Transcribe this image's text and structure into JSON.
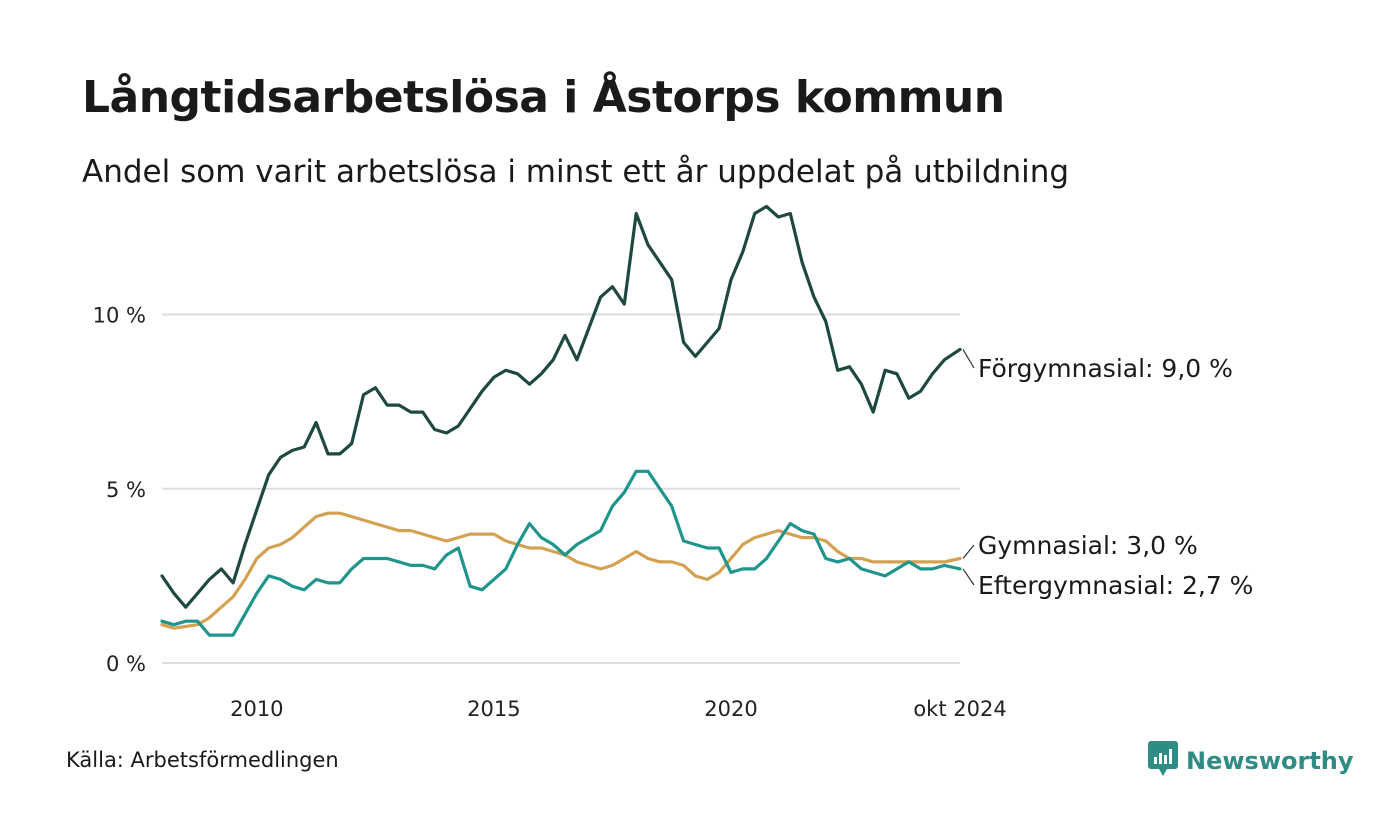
{
  "title": "Långtidsarbetslösa i Åstorps kommun",
  "subtitle": "Andel som varit arbetslösa i minst ett år uppdelat på utbildning",
  "source": "Källa: Arbetsförmedlingen",
  "brand": {
    "name": "Newsworthy",
    "icon": "newsworthy-logo-icon",
    "color": "#2f8c85"
  },
  "chart_data": {
    "type": "line",
    "title": "Långtidsarbetslösa i Åstorps kommun",
    "subtitle": "Andel som varit arbetslösa i minst ett år uppdelat på utbildning",
    "xlabel": "",
    "ylabel": "",
    "xlim": [
      2008.0,
      2024.83
    ],
    "ylim": [
      0,
      13
    ],
    "y_ticks": [
      0,
      5,
      10
    ],
    "y_tick_labels": [
      "0 %",
      "5 %",
      "10 %"
    ],
    "x_ticks": [
      2010,
      2015,
      2020,
      2024.83
    ],
    "x_tick_labels": [
      "2010",
      "2015",
      "2020",
      "okt 2024"
    ],
    "grid": "horizontal",
    "legend": "end-of-line labels (right)",
    "series": [
      {
        "name": "Förgymnasial",
        "end_label": "Förgymnasial: 9,0 %",
        "color": "#1e4840",
        "points": [
          [
            2008.0,
            2.5
          ],
          [
            2008.25,
            2.0
          ],
          [
            2008.5,
            1.6
          ],
          [
            2008.75,
            2.0
          ],
          [
            2009.0,
            2.4
          ],
          [
            2009.25,
            2.7
          ],
          [
            2009.5,
            2.3
          ],
          [
            2009.75,
            3.4
          ],
          [
            2010.0,
            4.4
          ],
          [
            2010.25,
            5.4
          ],
          [
            2010.5,
            5.9
          ],
          [
            2010.75,
            6.1
          ],
          [
            2011.0,
            6.2
          ],
          [
            2011.25,
            6.9
          ],
          [
            2011.5,
            6.0
          ],
          [
            2011.75,
            6.0
          ],
          [
            2012.0,
            6.3
          ],
          [
            2012.25,
            7.7
          ],
          [
            2012.5,
            7.9
          ],
          [
            2012.75,
            7.4
          ],
          [
            2013.0,
            7.4
          ],
          [
            2013.25,
            7.2
          ],
          [
            2013.5,
            7.2
          ],
          [
            2013.75,
            6.7
          ],
          [
            2014.0,
            6.6
          ],
          [
            2014.25,
            6.8
          ],
          [
            2014.5,
            7.3
          ],
          [
            2014.75,
            7.8
          ],
          [
            2015.0,
            8.2
          ],
          [
            2015.25,
            8.4
          ],
          [
            2015.5,
            8.3
          ],
          [
            2015.75,
            8.0
          ],
          [
            2016.0,
            8.3
          ],
          [
            2016.25,
            8.7
          ],
          [
            2016.5,
            9.4
          ],
          [
            2016.75,
            8.7
          ],
          [
            2017.0,
            9.6
          ],
          [
            2017.25,
            10.5
          ],
          [
            2017.5,
            10.8
          ],
          [
            2017.75,
            10.3
          ],
          [
            2018.0,
            12.9
          ],
          [
            2018.25,
            12.0
          ],
          [
            2018.5,
            11.5
          ],
          [
            2018.75,
            11.0
          ],
          [
            2019.0,
            9.2
          ],
          [
            2019.25,
            8.8
          ],
          [
            2019.5,
            9.2
          ],
          [
            2019.75,
            9.6
          ],
          [
            2020.0,
            11.0
          ],
          [
            2020.25,
            11.8
          ],
          [
            2020.5,
            12.9
          ],
          [
            2020.75,
            13.1
          ],
          [
            2021.0,
            12.8
          ],
          [
            2021.25,
            12.9
          ],
          [
            2021.5,
            11.5
          ],
          [
            2021.75,
            10.5
          ],
          [
            2022.0,
            9.8
          ],
          [
            2022.25,
            8.4
          ],
          [
            2022.5,
            8.5
          ],
          [
            2022.75,
            8.0
          ],
          [
            2023.0,
            7.2
          ],
          [
            2023.25,
            8.4
          ],
          [
            2023.5,
            8.3
          ],
          [
            2023.75,
            7.6
          ],
          [
            2024.0,
            7.8
          ],
          [
            2024.25,
            8.3
          ],
          [
            2024.5,
            8.7
          ],
          [
            2024.83,
            9.0
          ]
        ]
      },
      {
        "name": "Gymnasial",
        "end_label": "Gymnasial: 3,0 %",
        "color": "#d3a152",
        "points": [
          [
            2008.0,
            1.1
          ],
          [
            2008.25,
            1.0
          ],
          [
            2008.5,
            1.05
          ],
          [
            2008.75,
            1.1
          ],
          [
            2009.0,
            1.3
          ],
          [
            2009.25,
            1.6
          ],
          [
            2009.5,
            1.9
          ],
          [
            2009.75,
            2.4
          ],
          [
            2010.0,
            3.0
          ],
          [
            2010.25,
            3.3
          ],
          [
            2010.5,
            3.4
          ],
          [
            2010.75,
            3.6
          ],
          [
            2011.0,
            3.9
          ],
          [
            2011.25,
            4.2
          ],
          [
            2011.5,
            4.3
          ],
          [
            2011.75,
            4.3
          ],
          [
            2012.0,
            4.2
          ],
          [
            2012.25,
            4.1
          ],
          [
            2012.5,
            4.0
          ],
          [
            2012.75,
            3.9
          ],
          [
            2013.0,
            3.8
          ],
          [
            2013.25,
            3.8
          ],
          [
            2013.5,
            3.7
          ],
          [
            2013.75,
            3.6
          ],
          [
            2014.0,
            3.5
          ],
          [
            2014.25,
            3.6
          ],
          [
            2014.5,
            3.7
          ],
          [
            2014.75,
            3.7
          ],
          [
            2015.0,
            3.7
          ],
          [
            2015.25,
            3.5
          ],
          [
            2015.5,
            3.4
          ],
          [
            2015.75,
            3.3
          ],
          [
            2016.0,
            3.3
          ],
          [
            2016.25,
            3.2
          ],
          [
            2016.5,
            3.1
          ],
          [
            2016.75,
            2.9
          ],
          [
            2017.0,
            2.8
          ],
          [
            2017.25,
            2.7
          ],
          [
            2017.5,
            2.8
          ],
          [
            2017.75,
            3.0
          ],
          [
            2018.0,
            3.2
          ],
          [
            2018.25,
            3.0
          ],
          [
            2018.5,
            2.9
          ],
          [
            2018.75,
            2.9
          ],
          [
            2019.0,
            2.8
          ],
          [
            2019.25,
            2.5
          ],
          [
            2019.5,
            2.4
          ],
          [
            2019.75,
            2.6
          ],
          [
            2020.0,
            3.0
          ],
          [
            2020.25,
            3.4
          ],
          [
            2020.5,
            3.6
          ],
          [
            2020.75,
            3.7
          ],
          [
            2021.0,
            3.8
          ],
          [
            2021.25,
            3.7
          ],
          [
            2021.5,
            3.6
          ],
          [
            2021.75,
            3.6
          ],
          [
            2022.0,
            3.5
          ],
          [
            2022.25,
            3.2
          ],
          [
            2022.5,
            3.0
          ],
          [
            2022.75,
            3.0
          ],
          [
            2023.0,
            2.9
          ],
          [
            2023.25,
            2.9
          ],
          [
            2023.5,
            2.9
          ],
          [
            2023.75,
            2.9
          ],
          [
            2024.0,
            2.9
          ],
          [
            2024.25,
            2.9
          ],
          [
            2024.5,
            2.9
          ],
          [
            2024.83,
            3.0
          ]
        ]
      },
      {
        "name": "Eftergymnasial",
        "end_label": "Eftergymnasial: 2,7 %",
        "color": "#1f958b",
        "points": [
          [
            2008.0,
            1.2
          ],
          [
            2008.25,
            1.1
          ],
          [
            2008.5,
            1.2
          ],
          [
            2008.75,
            1.2
          ],
          [
            2009.0,
            0.8
          ],
          [
            2009.25,
            0.8
          ],
          [
            2009.5,
            0.8
          ],
          [
            2009.75,
            1.4
          ],
          [
            2010.0,
            2.0
          ],
          [
            2010.25,
            2.5
          ],
          [
            2010.5,
            2.4
          ],
          [
            2010.75,
            2.2
          ],
          [
            2011.0,
            2.1
          ],
          [
            2011.25,
            2.4
          ],
          [
            2011.5,
            2.3
          ],
          [
            2011.75,
            2.3
          ],
          [
            2012.0,
            2.7
          ],
          [
            2012.25,
            3.0
          ],
          [
            2012.5,
            3.0
          ],
          [
            2012.75,
            3.0
          ],
          [
            2013.0,
            2.9
          ],
          [
            2013.25,
            2.8
          ],
          [
            2013.5,
            2.8
          ],
          [
            2013.75,
            2.7
          ],
          [
            2014.0,
            3.1
          ],
          [
            2014.25,
            3.3
          ],
          [
            2014.5,
            2.2
          ],
          [
            2014.75,
            2.1
          ],
          [
            2015.0,
            2.4
          ],
          [
            2015.25,
            2.7
          ],
          [
            2015.5,
            3.4
          ],
          [
            2015.75,
            4.0
          ],
          [
            2016.0,
            3.6
          ],
          [
            2016.25,
            3.4
          ],
          [
            2016.5,
            3.1
          ],
          [
            2016.75,
            3.4
          ],
          [
            2017.0,
            3.6
          ],
          [
            2017.25,
            3.8
          ],
          [
            2017.5,
            4.5
          ],
          [
            2017.75,
            4.9
          ],
          [
            2018.0,
            5.5
          ],
          [
            2018.25,
            5.5
          ],
          [
            2018.5,
            5.0
          ],
          [
            2018.75,
            4.5
          ],
          [
            2019.0,
            3.5
          ],
          [
            2019.25,
            3.4
          ],
          [
            2019.5,
            3.3
          ],
          [
            2019.75,
            3.3
          ],
          [
            2020.0,
            2.6
          ],
          [
            2020.25,
            2.7
          ],
          [
            2020.5,
            2.7
          ],
          [
            2020.75,
            3.0
          ],
          [
            2021.0,
            3.5
          ],
          [
            2021.25,
            4.0
          ],
          [
            2021.5,
            3.8
          ],
          [
            2021.75,
            3.7
          ],
          [
            2022.0,
            3.0
          ],
          [
            2022.25,
            2.9
          ],
          [
            2022.5,
            3.0
          ],
          [
            2022.75,
            2.7
          ],
          [
            2023.0,
            2.6
          ],
          [
            2023.25,
            2.5
          ],
          [
            2023.5,
            2.7
          ],
          [
            2023.75,
            2.9
          ],
          [
            2024.0,
            2.7
          ],
          [
            2024.25,
            2.7
          ],
          [
            2024.5,
            2.8
          ],
          [
            2024.83,
            2.7
          ]
        ]
      }
    ]
  }
}
